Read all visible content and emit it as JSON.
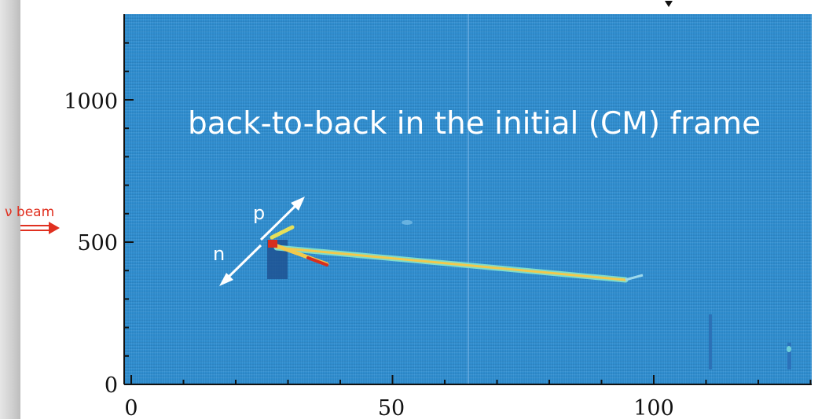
{
  "image": {
    "axes": {
      "x_ticks": [
        "0",
        "50",
        "100"
      ],
      "y_ticks": [
        "0",
        "500",
        "1000"
      ]
    },
    "annotation": "back-to-back in the initial (CM) frame",
    "labels": {
      "p": "p",
      "n": "n",
      "beam": "ν beam"
    },
    "colors": {
      "background": "#2f8fd2",
      "track": "#f2c94c",
      "hot_track": "#d62f1f",
      "arrow": "#ffffff",
      "beam_arrow": "#e03020"
    }
  }
}
